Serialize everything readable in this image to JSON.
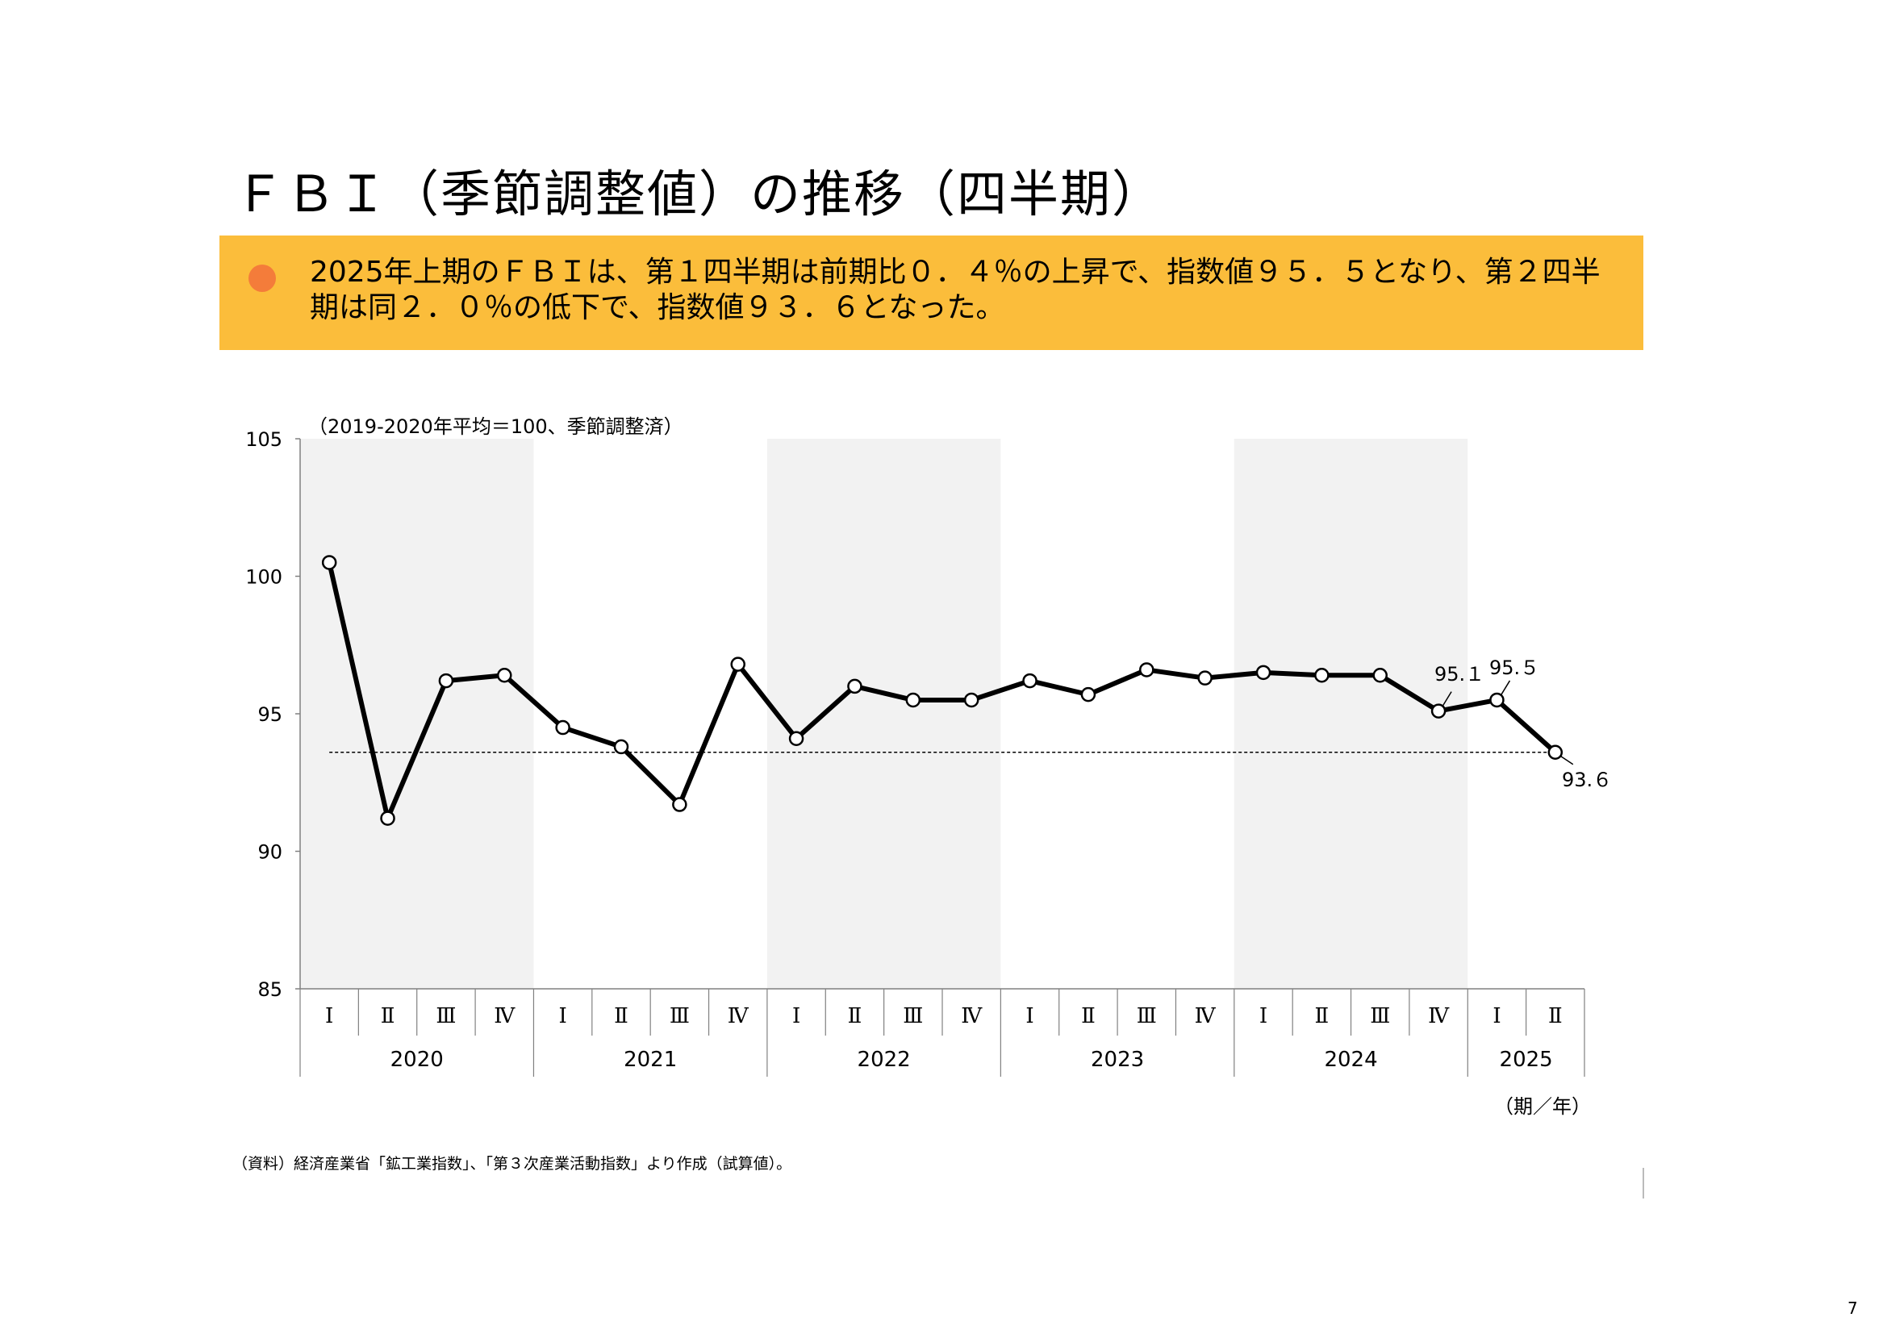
{
  "page": {
    "title": "ＦＢＩ（季節調整値）の推移（四半期）",
    "summary": "2025年上期のＦＢＩは、第１四半期は前期比０．４％の上昇で、指数値９５．５となり、第２四半期は同２．０％の低下で、指数値９３．６となった。",
    "source": "（資料）経済産業省「鉱工業指数」、「第３次産業活動指数」より作成（試算値）。",
    "page_number": "7",
    "colors": {
      "summary_bg": "#fbbd3b",
      "bullet": "#f47c3a",
      "band": "#f2f2f2",
      "line": "#000000"
    }
  },
  "chart_data": {
    "type": "line",
    "title": "",
    "note": "（2019-2020年平均＝100、季節調整済）",
    "xlabel": "（期／年）",
    "ylabel": "",
    "ylim": [
      85,
      105
    ],
    "yticks": [
      105,
      100,
      95,
      90,
      85
    ],
    "years": [
      {
        "label": "2020",
        "quarters": 4,
        "shaded": true
      },
      {
        "label": "2021",
        "quarters": 4,
        "shaded": false
      },
      {
        "label": "2022",
        "quarters": 4,
        "shaded": true
      },
      {
        "label": "2023",
        "quarters": 4,
        "shaded": false
      },
      {
        "label": "2024",
        "quarters": 4,
        "shaded": true
      },
      {
        "label": "2025",
        "quarters": 2,
        "shaded": false
      }
    ],
    "categories": [
      "Ⅰ",
      "Ⅱ",
      "Ⅲ",
      "Ⅳ",
      "Ⅰ",
      "Ⅱ",
      "Ⅲ",
      "Ⅳ",
      "Ⅰ",
      "Ⅱ",
      "Ⅲ",
      "Ⅳ",
      "Ⅰ",
      "Ⅱ",
      "Ⅲ",
      "Ⅳ",
      "Ⅰ",
      "Ⅱ",
      "Ⅲ",
      "Ⅳ",
      "Ⅰ",
      "Ⅱ"
    ],
    "series": [
      {
        "name": "FBI",
        "values": [
          100.5,
          91.2,
          96.2,
          96.4,
          94.5,
          93.8,
          91.7,
          96.8,
          94.1,
          96.0,
          95.5,
          95.5,
          96.2,
          95.7,
          96.6,
          96.3,
          96.5,
          96.4,
          96.4,
          95.1,
          95.5,
          93.6
        ]
      }
    ],
    "reference_line": 93.6,
    "annotations": [
      {
        "index": 19,
        "text": "95.１"
      },
      {
        "index": 20,
        "text": "95.５"
      },
      {
        "index": 21,
        "text": "93.６"
      }
    ]
  }
}
